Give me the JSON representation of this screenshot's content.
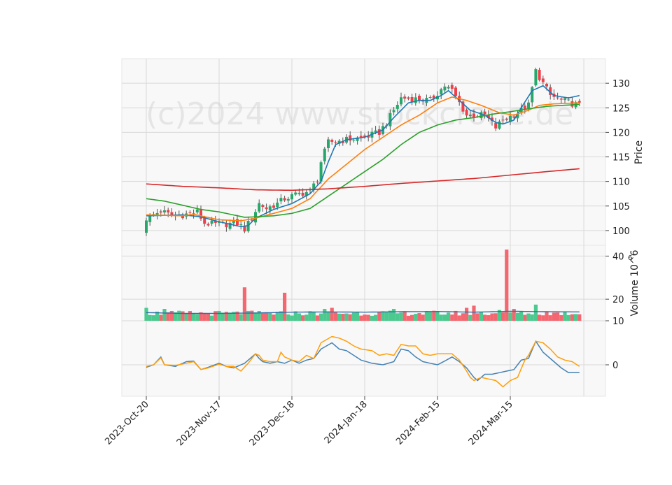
{
  "watermark": "(c)2024 www.stockcrone.de",
  "chart_data": {
    "type": "candlestick",
    "x_tick_labels": [
      "2023-Oct-20",
      "2023-Nov-17",
      "2023-Dec-18",
      "2024-Jan-18",
      "2024-Feb-15",
      "2024-Mar-15"
    ],
    "x_tick_index": [
      0,
      20,
      40,
      60,
      80,
      100
    ],
    "bar_count": 120,
    "price_panel": {
      "ylabel": "Price",
      "ylim": [
        97,
        135
      ],
      "ticks": [
        100,
        105,
        110,
        115,
        120,
        125,
        130
      ],
      "grid": true,
      "close_anchors": [
        [
          0,
          102.5
        ],
        [
          4,
          104
        ],
        [
          7,
          103
        ],
        [
          10,
          103.2
        ],
        [
          14,
          103.8
        ],
        [
          16,
          101.5
        ],
        [
          20,
          101.2
        ],
        [
          25,
          101.5
        ],
        [
          27,
          100.3
        ],
        [
          29,
          102.5
        ],
        [
          31,
          105.5
        ],
        [
          33,
          104.5
        ],
        [
          36,
          105.5
        ],
        [
          38,
          106.5
        ],
        [
          42,
          107.5
        ],
        [
          45,
          108
        ],
        [
          47,
          110.5
        ],
        [
          48,
          114
        ],
        [
          50,
          118
        ],
        [
          55,
          118.5
        ],
        [
          60,
          119
        ],
        [
          64,
          120
        ],
        [
          66,
          122
        ],
        [
          70,
          127
        ],
        [
          74,
          126.8
        ],
        [
          78,
          126.5
        ],
        [
          82,
          129.5
        ],
        [
          84,
          128.5
        ],
        [
          86,
          126
        ],
        [
          88,
          123.5
        ],
        [
          93,
          123.5
        ],
        [
          96,
          121
        ],
        [
          98,
          122.5
        ],
        [
          102,
          124
        ],
        [
          105,
          125.5
        ],
        [
          107,
          132.5
        ],
        [
          109,
          130
        ],
        [
          111,
          127.5
        ],
        [
          114,
          126.5
        ],
        [
          119,
          125.5
        ]
      ],
      "ma_series": [
        {
          "key": "ma5",
          "color": "#1f77b4",
          "anchors": [
            [
              0,
              103
            ],
            [
              10,
              103.2
            ],
            [
              15,
              102.8
            ],
            [
              20,
              101.8
            ],
            [
              26,
              100.8
            ],
            [
              28,
              101
            ],
            [
              30,
              102.5
            ],
            [
              35,
              104.3
            ],
            [
              40,
              105.5
            ],
            [
              45,
              107.5
            ],
            [
              48,
              110
            ],
            [
              50,
              114
            ],
            [
              52,
              117.5
            ],
            [
              55,
              118.5
            ],
            [
              60,
              119
            ],
            [
              65,
              120.5
            ],
            [
              68,
              123
            ],
            [
              72,
              126
            ],
            [
              75,
              126.5
            ],
            [
              78,
              126.5
            ],
            [
              81,
              127.5
            ],
            [
              83,
              128.5
            ],
            [
              86,
              126.5
            ],
            [
              89,
              124.5
            ],
            [
              93,
              123.5
            ],
            [
              96,
              122
            ],
            [
              98,
              121.7
            ],
            [
              101,
              122.5
            ],
            [
              103,
              125
            ],
            [
              106,
              128.5
            ],
            [
              109,
              129.5
            ],
            [
              112,
              127.5
            ],
            [
              116,
              127
            ],
            [
              119,
              127.5
            ]
          ]
        },
        {
          "key": "ma10",
          "color": "#ff7f0e",
          "anchors": [
            [
              0,
              103.2
            ],
            [
              10,
              103
            ],
            [
              13,
              103.3
            ],
            [
              20,
              102.2
            ],
            [
              26,
              102
            ],
            [
              30,
              102.5
            ],
            [
              35,
              103.5
            ],
            [
              40,
              104.5
            ],
            [
              45,
              106.5
            ],
            [
              50,
              110.5
            ],
            [
              55,
              113.5
            ],
            [
              60,
              116.5
            ],
            [
              65,
              119
            ],
            [
              70,
              121.5
            ],
            [
              75,
              123.5
            ],
            [
              80,
              126
            ],
            [
              84,
              127.2
            ],
            [
              88,
              126.5
            ],
            [
              92,
              125.5
            ],
            [
              97,
              124
            ],
            [
              101,
              123.5
            ],
            [
              105,
              124.5
            ],
            [
              108,
              125.5
            ],
            [
              112,
              125.8
            ],
            [
              119,
              126
            ]
          ]
        },
        {
          "key": "ma20",
          "color": "#2ca02c",
          "anchors": [
            [
              0,
              106.5
            ],
            [
              5,
              106
            ],
            [
              15,
              104.3
            ],
            [
              20,
              103.8
            ],
            [
              27,
              102.7
            ],
            [
              30,
              102.8
            ],
            [
              35,
              103
            ],
            [
              40,
              103.5
            ],
            [
              45,
              104.5
            ],
            [
              50,
              107
            ],
            [
              55,
              109.5
            ],
            [
              60,
              112
            ],
            [
              65,
              114.5
            ],
            [
              70,
              117.5
            ],
            [
              75,
              120
            ],
            [
              80,
              121.5
            ],
            [
              85,
              122.5
            ],
            [
              90,
              123
            ],
            [
              95,
              123.7
            ],
            [
              100,
              124.2
            ],
            [
              105,
              124.8
            ],
            [
              110,
              125.3
            ],
            [
              119,
              125.7
            ]
          ]
        },
        {
          "key": "ma100",
          "color": "#d62728",
          "anchors": [
            [
              0,
              109.5
            ],
            [
              10,
              109
            ],
            [
              20,
              108.7
            ],
            [
              30,
              108.3
            ],
            [
              40,
              108.2
            ],
            [
              50,
              108.5
            ],
            [
              60,
              109
            ],
            [
              70,
              109.6
            ],
            [
              80,
              110.1
            ],
            [
              90,
              110.6
            ],
            [
              100,
              111.3
            ],
            [
              110,
              112
            ],
            [
              119,
              112.6
            ]
          ]
        }
      ]
    },
    "volume_panel": {
      "ylabel": "Volume 10^6",
      "ylim": [
        10,
        45
      ],
      "ticks": [
        10,
        20,
        40
      ],
      "grid": true,
      "base": 13.5,
      "spikes": [
        [
          0,
          16
        ],
        [
          5,
          15.5
        ],
        [
          27,
          25.5
        ],
        [
          38,
          23
        ],
        [
          49,
          15.5
        ],
        [
          51,
          16
        ],
        [
          68,
          15.5
        ],
        [
          88,
          16
        ],
        [
          90,
          17
        ],
        [
          97,
          15
        ],
        [
          99,
          43
        ],
        [
          101,
          15.5
        ],
        [
          107,
          17.5
        ]
      ],
      "ma_anchors": [
        [
          0,
          13.8
        ],
        [
          10,
          13.4
        ],
        [
          20,
          13.4
        ],
        [
          30,
          13.6
        ],
        [
          40,
          14
        ],
        [
          50,
          14.1
        ],
        [
          60,
          14
        ],
        [
          70,
          14.2
        ],
        [
          80,
          14.3
        ],
        [
          90,
          14
        ],
        [
          100,
          14.4
        ],
        [
          110,
          14.2
        ],
        [
          119,
          14.1
        ]
      ]
    },
    "oscillator_panel": {
      "ylim": [
        -10,
        14
      ],
      "ticks": [
        0
      ],
      "grid": true,
      "series": [
        {
          "key": "fast",
          "color": "#4682b4",
          "anchors": [
            [
              0,
              -0.8
            ],
            [
              2,
              0
            ],
            [
              4,
              2.5
            ],
            [
              5,
              0
            ],
            [
              8,
              -0.5
            ],
            [
              11,
              1
            ],
            [
              13,
              1.2
            ],
            [
              15,
              -1.5
            ],
            [
              17,
              -0.8
            ],
            [
              20,
              0.5
            ],
            [
              22,
              -0.5
            ],
            [
              24,
              -1
            ],
            [
              27,
              0.5
            ],
            [
              30,
              3.5
            ],
            [
              31,
              2
            ],
            [
              32,
              1
            ],
            [
              34,
              0.5
            ],
            [
              36,
              1
            ],
            [
              38,
              0.5
            ],
            [
              40,
              1.5
            ],
            [
              42,
              0.5
            ],
            [
              44,
              1.5
            ],
            [
              46,
              2
            ],
            [
              48,
              5
            ],
            [
              51,
              7
            ],
            [
              53,
              5
            ],
            [
              55,
              4.5
            ],
            [
              57,
              3
            ],
            [
              59,
              1.5
            ],
            [
              62,
              0.5
            ],
            [
              65,
              0
            ],
            [
              68,
              1
            ],
            [
              70,
              5
            ],
            [
              72,
              4.5
            ],
            [
              74,
              2.5
            ],
            [
              76,
              1
            ],
            [
              78,
              0.5
            ],
            [
              80,
              0
            ],
            [
              82,
              1.2
            ],
            [
              84,
              2.5
            ],
            [
              86,
              1
            ],
            [
              88,
              -1
            ],
            [
              90,
              -4
            ],
            [
              91,
              -5
            ],
            [
              93,
              -3
            ],
            [
              95,
              -3
            ],
            [
              97,
              -2.5
            ],
            [
              99,
              -2
            ],
            [
              101,
              -1.5
            ],
            [
              103,
              1.5
            ],
            [
              105,
              2
            ],
            [
              107,
              7.5
            ],
            [
              109,
              4
            ],
            [
              111,
              2
            ],
            [
              114,
              -1
            ],
            [
              116,
              -2.5
            ],
            [
              119,
              -2.5
            ]
          ]
        },
        {
          "key": "slow",
          "color": "#ff9f0a",
          "anchors": [
            [
              0,
              -0.5
            ],
            [
              2,
              0
            ],
            [
              4,
              2.2
            ],
            [
              5,
              0
            ],
            [
              8,
              -0.2
            ],
            [
              11,
              0.5
            ],
            [
              13,
              1
            ],
            [
              15,
              -1.5
            ],
            [
              17,
              -1
            ],
            [
              20,
              0.2
            ],
            [
              22,
              -0.5
            ],
            [
              24,
              -0.5
            ],
            [
              26,
              -2
            ],
            [
              28,
              0.5
            ],
            [
              30,
              3.5
            ],
            [
              31,
              3
            ],
            [
              32,
              1.5
            ],
            [
              34,
              1
            ],
            [
              36,
              1
            ],
            [
              37,
              4
            ],
            [
              38,
              2.5
            ],
            [
              40,
              1.5
            ],
            [
              42,
              1
            ],
            [
              44,
              3
            ],
            [
              46,
              2
            ],
            [
              48,
              7
            ],
            [
              51,
              9
            ],
            [
              53,
              8.5
            ],
            [
              55,
              7.5
            ],
            [
              57,
              6
            ],
            [
              59,
              5
            ],
            [
              62,
              4.5
            ],
            [
              64,
              3
            ],
            [
              66,
              3.5
            ],
            [
              68,
              3
            ],
            [
              70,
              6.5
            ],
            [
              72,
              6
            ],
            [
              74,
              6
            ],
            [
              76,
              3.5
            ],
            [
              78,
              3
            ],
            [
              80,
              3.5
            ],
            [
              82,
              3.5
            ],
            [
              84,
              3.5
            ],
            [
              86,
              1.5
            ],
            [
              88,
              -2
            ],
            [
              89,
              -4
            ],
            [
              90,
              -5
            ],
            [
              92,
              -4
            ],
            [
              94,
              -4.5
            ],
            [
              96,
              -5
            ],
            [
              98,
              -7
            ],
            [
              100,
              -5
            ],
            [
              102,
              -4
            ],
            [
              104,
              1.5
            ],
            [
              105,
              3
            ],
            [
              107,
              7.5
            ],
            [
              109,
              7
            ],
            [
              111,
              5
            ],
            [
              113,
              2.5
            ],
            [
              115,
              1.5
            ],
            [
              117,
              1
            ],
            [
              119,
              -0.5
            ]
          ]
        }
      ]
    }
  }
}
